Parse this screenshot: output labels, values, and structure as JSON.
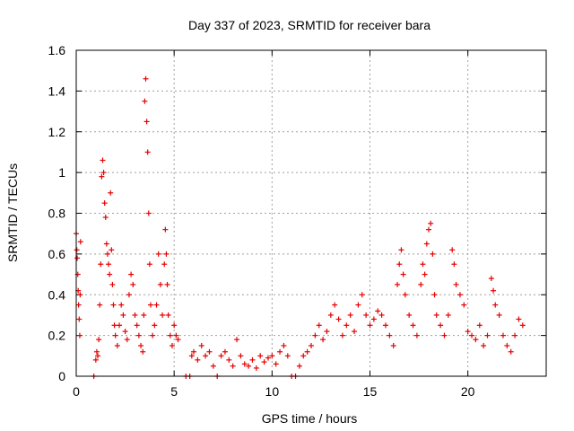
{
  "chart_data": {
    "type": "scatter",
    "title": "Day 337 of 2023, SRMTID for receiver bara",
    "xlabel": "GPS time / hours",
    "ylabel": "SRMTID / TECUs",
    "xlim": [
      0,
      24
    ],
    "ylim": [
      0,
      1.6
    ],
    "xticks": [
      0,
      5,
      10,
      15,
      20
    ],
    "xtick_labels": [
      "0",
      "5",
      "10",
      "15",
      "20"
    ],
    "yticks": [
      0,
      0.2,
      0.4,
      0.6,
      0.8,
      1.0,
      1.2,
      1.4,
      1.6
    ],
    "ytick_labels": [
      "0",
      "0.2",
      "0.4",
      "0.6",
      "0.8",
      "1",
      "1.2",
      "1.4",
      "1.6"
    ],
    "grid": true,
    "marker": "+",
    "marker_color": "#e60000",
    "series": [
      {
        "name": "SRMTID",
        "points": [
          [
            0.0,
            0.7
          ],
          [
            0.03,
            0.62
          ],
          [
            0.05,
            0.58
          ],
          [
            0.08,
            0.5
          ],
          [
            0.1,
            0.42
          ],
          [
            0.12,
            0.35
          ],
          [
            0.15,
            0.28
          ],
          [
            0.18,
            0.2
          ],
          [
            0.2,
            0.4
          ],
          [
            0.22,
            0.66
          ],
          [
            0.9,
            0.0
          ],
          [
            1.0,
            0.08
          ],
          [
            1.05,
            0.12
          ],
          [
            1.1,
            0.1
          ],
          [
            1.15,
            0.18
          ],
          [
            1.2,
            0.35
          ],
          [
            1.25,
            0.55
          ],
          [
            1.3,
            0.98
          ],
          [
            1.35,
            1.06
          ],
          [
            1.4,
            1.0
          ],
          [
            1.45,
            0.85
          ],
          [
            1.5,
            0.78
          ],
          [
            1.55,
            0.65
          ],
          [
            1.6,
            0.6
          ],
          [
            1.65,
            0.55
          ],
          [
            1.7,
            0.5
          ],
          [
            1.75,
            0.9
          ],
          [
            1.8,
            0.62
          ],
          [
            1.85,
            0.45
          ],
          [
            1.9,
            0.35
          ],
          [
            1.95,
            0.25
          ],
          [
            2.0,
            0.2
          ],
          [
            2.1,
            0.15
          ],
          [
            2.2,
            0.25
          ],
          [
            2.3,
            0.35
          ],
          [
            2.4,
            0.3
          ],
          [
            2.5,
            0.22
          ],
          [
            2.6,
            0.18
          ],
          [
            2.7,
            0.4
          ],
          [
            2.8,
            0.5
          ],
          [
            2.9,
            0.45
          ],
          [
            3.0,
            0.3
          ],
          [
            3.1,
            0.25
          ],
          [
            3.2,
            0.2
          ],
          [
            3.3,
            0.15
          ],
          [
            3.4,
            0.12
          ],
          [
            3.45,
            0.3
          ],
          [
            3.5,
            1.35
          ],
          [
            3.55,
            1.46
          ],
          [
            3.6,
            1.25
          ],
          [
            3.65,
            1.1
          ],
          [
            3.7,
            0.8
          ],
          [
            3.75,
            0.55
          ],
          [
            3.8,
            0.35
          ],
          [
            3.9,
            0.2
          ],
          [
            4.0,
            0.25
          ],
          [
            4.1,
            0.35
          ],
          [
            4.2,
            0.6
          ],
          [
            4.3,
            0.45
          ],
          [
            4.4,
            0.3
          ],
          [
            4.5,
            0.55
          ],
          [
            4.55,
            0.72
          ],
          [
            4.6,
            0.6
          ],
          [
            4.65,
            0.45
          ],
          [
            4.7,
            0.3
          ],
          [
            4.8,
            0.2
          ],
          [
            4.9,
            0.15
          ],
          [
            5.0,
            0.25
          ],
          [
            5.1,
            0.2
          ],
          [
            5.2,
            0.18
          ],
          [
            5.6,
            0.0
          ],
          [
            5.8,
            0.0
          ],
          [
            5.9,
            0.1
          ],
          [
            6.0,
            0.12
          ],
          [
            6.2,
            0.08
          ],
          [
            6.4,
            0.15
          ],
          [
            6.6,
            0.1
          ],
          [
            6.8,
            0.12
          ],
          [
            7.0,
            0.05
          ],
          [
            7.2,
            0.0
          ],
          [
            7.4,
            0.1
          ],
          [
            7.6,
            0.12
          ],
          [
            7.8,
            0.08
          ],
          [
            8.0,
            0.05
          ],
          [
            8.2,
            0.18
          ],
          [
            8.4,
            0.1
          ],
          [
            8.6,
            0.06
          ],
          [
            8.8,
            0.05
          ],
          [
            9.0,
            0.08
          ],
          [
            9.2,
            0.04
          ],
          [
            9.4,
            0.1
          ],
          [
            9.6,
            0.07
          ],
          [
            9.8,
            0.09
          ],
          [
            10.0,
            0.1
          ],
          [
            10.2,
            0.06
          ],
          [
            10.4,
            0.12
          ],
          [
            10.6,
            0.15
          ],
          [
            10.8,
            0.1
          ],
          [
            11.0,
            0.0
          ],
          [
            11.2,
            0.0
          ],
          [
            11.4,
            0.05
          ],
          [
            11.6,
            0.1
          ],
          [
            11.8,
            0.12
          ],
          [
            12.0,
            0.15
          ],
          [
            12.2,
            0.2
          ],
          [
            12.4,
            0.25
          ],
          [
            12.6,
            0.18
          ],
          [
            12.8,
            0.22
          ],
          [
            13.0,
            0.3
          ],
          [
            13.2,
            0.35
          ],
          [
            13.4,
            0.28
          ],
          [
            13.6,
            0.2
          ],
          [
            13.8,
            0.25
          ],
          [
            14.0,
            0.3
          ],
          [
            14.2,
            0.22
          ],
          [
            14.4,
            0.35
          ],
          [
            14.6,
            0.4
          ],
          [
            14.8,
            0.3
          ],
          [
            15.0,
            0.25
          ],
          [
            15.2,
            0.28
          ],
          [
            15.4,
            0.32
          ],
          [
            15.6,
            0.3
          ],
          [
            15.8,
            0.25
          ],
          [
            16.0,
            0.2
          ],
          [
            16.2,
            0.15
          ],
          [
            16.4,
            0.45
          ],
          [
            16.5,
            0.55
          ],
          [
            16.6,
            0.62
          ],
          [
            16.7,
            0.5
          ],
          [
            16.8,
            0.4
          ],
          [
            17.0,
            0.3
          ],
          [
            17.2,
            0.25
          ],
          [
            17.4,
            0.2
          ],
          [
            17.6,
            0.45
          ],
          [
            17.7,
            0.55
          ],
          [
            17.8,
            0.5
          ],
          [
            17.9,
            0.65
          ],
          [
            18.0,
            0.72
          ],
          [
            18.1,
            0.75
          ],
          [
            18.2,
            0.6
          ],
          [
            18.3,
            0.4
          ],
          [
            18.4,
            0.3
          ],
          [
            18.6,
            0.25
          ],
          [
            18.8,
            0.2
          ],
          [
            19.0,
            0.3
          ],
          [
            19.2,
            0.62
          ],
          [
            19.3,
            0.55
          ],
          [
            19.4,
            0.45
          ],
          [
            19.6,
            0.4
          ],
          [
            19.8,
            0.35
          ],
          [
            20.0,
            0.22
          ],
          [
            20.2,
            0.2
          ],
          [
            20.4,
            0.18
          ],
          [
            20.6,
            0.25
          ],
          [
            20.8,
            0.15
          ],
          [
            21.0,
            0.2
          ],
          [
            21.2,
            0.48
          ],
          [
            21.3,
            0.42
          ],
          [
            21.4,
            0.35
          ],
          [
            21.6,
            0.3
          ],
          [
            21.8,
            0.2
          ],
          [
            22.0,
            0.15
          ],
          [
            22.2,
            0.12
          ],
          [
            22.4,
            0.2
          ],
          [
            22.6,
            0.28
          ],
          [
            22.8,
            0.25
          ]
        ]
      }
    ]
  }
}
